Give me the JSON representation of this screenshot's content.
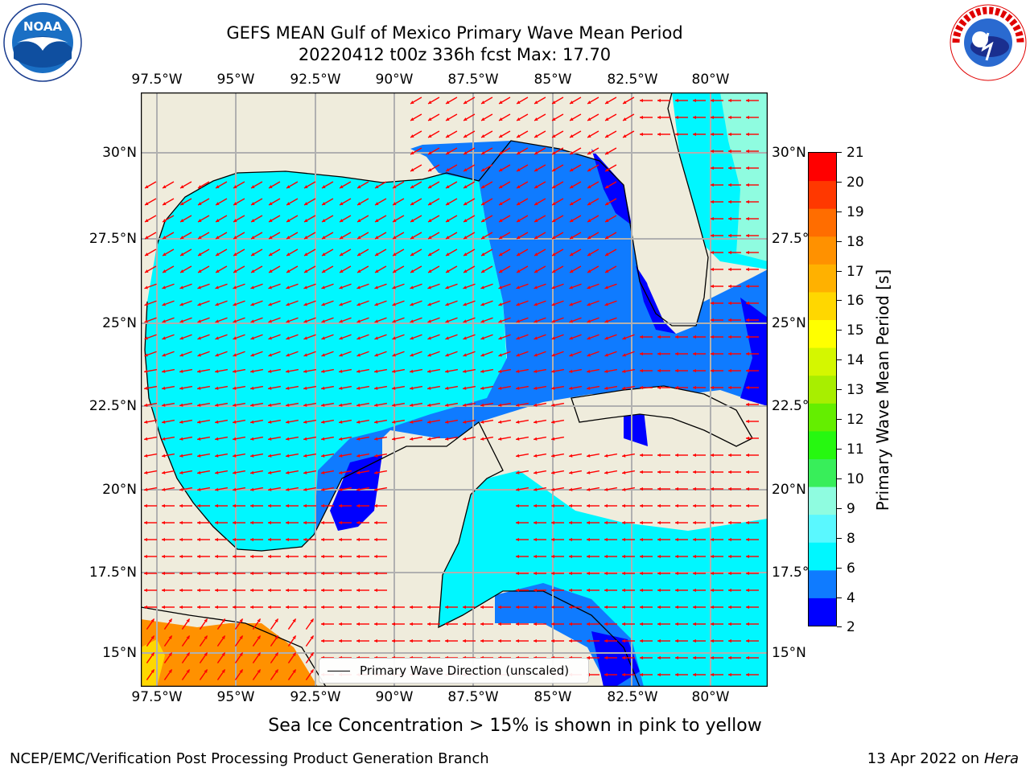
{
  "title": {
    "line1": "GEFS MEAN Gulf of Mexico Primary Wave Mean Period",
    "line2": "20220412 t00z 336h fcst   Max: 17.70"
  },
  "logos": {
    "left_text": "NOAA",
    "left_ring": "NATIONAL OCEANIC AND ATMOSPHERIC ADMINISTRATION · U.S. DEPARTMENT OF COMMERCE",
    "right_ring": "NATIONAL WEATHER SERVICE"
  },
  "map": {
    "lon_ticks": [
      "97.5°W",
      "95°W",
      "92.5°W",
      "90°W",
      "87.5°W",
      "85°W",
      "82.5°W",
      "80°W"
    ],
    "lat_ticks": [
      "30°N",
      "27.5°N",
      "25°N",
      "22.5°N",
      "20°N",
      "17.5°N",
      "15°N"
    ],
    "land_color": "#efecdc",
    "arrow_color": "#ff0000",
    "grid": true
  },
  "legend": {
    "label": "Primary Wave Direction (unscaled)"
  },
  "colorbar": {
    "label": "Primary Wave Mean Period [s]",
    "ticks": [
      "21",
      "20",
      "19",
      "18",
      "17",
      "16",
      "15",
      "14",
      "13",
      "12",
      "11",
      "10",
      "9",
      "8",
      "6",
      "4",
      "2"
    ],
    "colors": [
      "#0000ff",
      "#0f7bff",
      "#00f7ff",
      "#5af8ff",
      "#8ffce0",
      "#38ee5a",
      "#26f810",
      "#64ee00",
      "#a8ee00",
      "#d4f700",
      "#ffff00",
      "#ffd700",
      "#ffb100",
      "#ff9100",
      "#ff6d00",
      "#ff3800",
      "#ff0000"
    ]
  },
  "note": "Sea Ice Concentration > 15% is shown in pink to yellow",
  "footer": {
    "left": "NCEP/EMC/Verification Post Processing Product Generation Branch",
    "right_prefix": "13 Apr 2022 on ",
    "right_italic": "Hera"
  }
}
